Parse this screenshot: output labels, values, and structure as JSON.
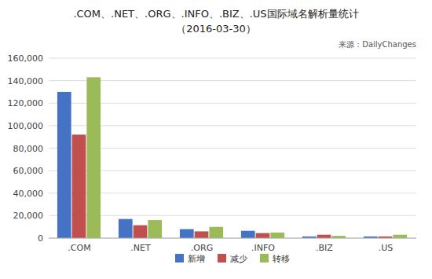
{
  "chart_data": {
    "type": "bar",
    "title": ".COM、.NET、.ORG、.INFO、.BIZ、.US国际域名解析量统计",
    "subtitle": "（2016-03-30）",
    "annotations": [
      "来源：DailyChanges"
    ],
    "categories": [
      ".COM",
      ".NET",
      ".ORG",
      ".INFO",
      ".BIZ",
      ".US"
    ],
    "series": [
      {
        "name": "新增",
        "color": "#4472C4",
        "values": [
          130000,
          17000,
          8000,
          6500,
          1500,
          1500
        ]
      },
      {
        "name": "减少",
        "color": "#C0504D",
        "values": [
          92000,
          11500,
          6000,
          4500,
          3000,
          1500
        ]
      },
      {
        "name": "转移",
        "color": "#9BBB59",
        "values": [
          143000,
          16000,
          10000,
          5000,
          2000,
          3000
        ]
      }
    ],
    "ylim": [
      0,
      160000
    ],
    "yticks": [
      0,
      {
        "value": 20000,
        "label": "20,000"
      },
      {
        "value": 40000,
        "label": "40,000"
      },
      {
        "value": 60000,
        "label": "60,000"
      },
      {
        "value": 80000,
        "label": "80,000"
      },
      {
        "value": 100000,
        "label": "100,000"
      },
      {
        "value": 120000,
        "label": "120,000"
      },
      {
        "value": 140000,
        "label": "140,000"
      },
      {
        "value": 160000,
        "label": "160,000"
      }
    ],
    "grid": true,
    "legend": "bottom"
  }
}
